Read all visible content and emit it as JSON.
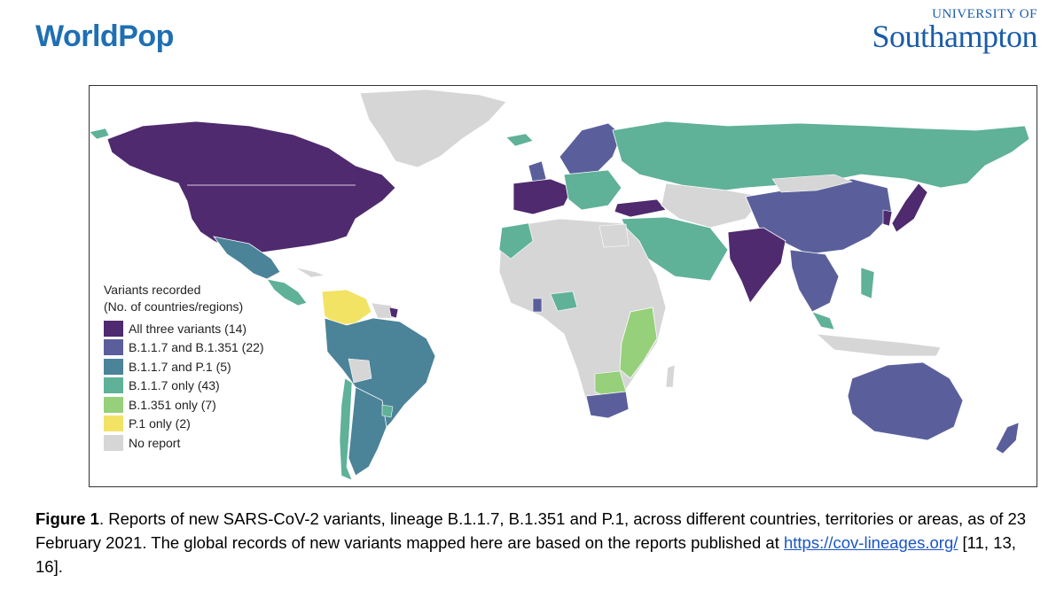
{
  "header": {
    "left_logo": "WorldPop",
    "right_logo_small": "UNIVERSITY OF",
    "right_logo_big": "Southampton"
  },
  "legend": {
    "title_line1": "Variants recorded",
    "title_line2": "(No. of countries/regions)",
    "items": [
      {
        "label": "All three variants (14)",
        "color": "#4f2a6e"
      },
      {
        "label": "B.1.1.7 and B.1.351 (22)",
        "color": "#5a5f9c"
      },
      {
        "label": "B.1.1.7 and P.1 (5)",
        "color": "#4b8399"
      },
      {
        "label": "B.1.1.7 only (43)",
        "color": "#5fb198"
      },
      {
        "label": "B.1.351 only (7)",
        "color": "#96d07a"
      },
      {
        "label": "P.1 only (2)",
        "color": "#f3e365"
      },
      {
        "label": "No report",
        "color": "#d6d6d6"
      }
    ]
  },
  "caption": {
    "figure_label": "Figure 1",
    "text_before_link": ". Reports of new SARS-CoV-2 variants, lineage B.1.1.7, B.1.351 and P.1, across different countries, territories or areas, as of 23 February 2021. The global records of new variants mapped here are based on the reports published at ",
    "link_text": "https://cov-lineages.org/",
    "text_after_link": " [11, 13, 16]."
  }
}
